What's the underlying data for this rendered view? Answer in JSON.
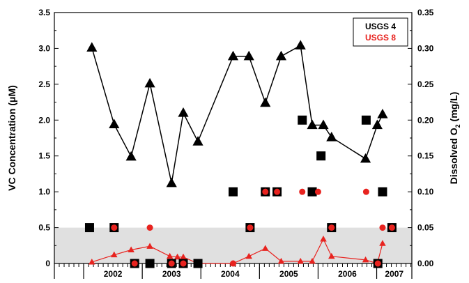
{
  "chart_data": {
    "type": "scatter",
    "title": "",
    "y_left": {
      "label_main": "VC Concentration (",
      "label_mu": "μ",
      "label_tail": "M)",
      "range": [
        0,
        3.5
      ],
      "ticks": [
        "0",
        "0.5",
        "1.0",
        "1.5",
        "2.0",
        "2.5",
        "3.0",
        "3.5"
      ]
    },
    "y_right": {
      "label_main": "Dissolved O",
      "label_sub": "2",
      "label_tail": " (mg/L)",
      "range": [
        0,
        0.35
      ],
      "ticks": [
        "0.00",
        "0.05",
        "0.10",
        "0.15",
        "0.20",
        "0.25",
        "0.30",
        "0.35"
      ]
    },
    "x_axis": {
      "range": [
        2001.5,
        2007.6
      ],
      "year_labels": [
        "2002",
        "2003",
        "2004",
        "2005",
        "2006",
        "2007"
      ]
    },
    "shaded_band": {
      "y_from": 0,
      "y_to": 0.5,
      "color": "#e0e0e0"
    },
    "legend": {
      "position": "top-right",
      "entries": [
        {
          "label": "USGS 4",
          "color": "#000000"
        },
        {
          "label": "USGS 8",
          "color": "#e8231f"
        }
      ]
    },
    "series": [
      {
        "name": "USGS 4",
        "color": "#000000",
        "style": "triangle-line",
        "axis": "right",
        "points": [
          [
            2002.14,
            0.301
          ],
          [
            2002.52,
            0.194
          ],
          [
            2002.81,
            0.149
          ],
          [
            2003.13,
            0.251
          ],
          [
            2003.5,
            0.112
          ],
          [
            2003.7,
            0.21
          ],
          [
            2003.95,
            0.17
          ],
          [
            2004.55,
            0.289
          ],
          [
            2004.82,
            0.289
          ],
          [
            2005.1,
            0.224
          ],
          [
            2005.37,
            0.289
          ],
          [
            2005.7,
            0.304
          ],
          [
            2005.9,
            0.193
          ],
          [
            2006.09,
            0.193
          ],
          [
            2006.23,
            0.176
          ],
          [
            2006.81,
            0.146
          ],
          [
            2007.01,
            0.193
          ],
          [
            2007.1,
            0.208
          ]
        ]
      },
      {
        "name": "USGS 8",
        "color": "#e8231f",
        "style": "triangle-line",
        "axis": "right",
        "points": [
          [
            2002.14,
            0.002
          ],
          [
            2002.52,
            0.012
          ],
          [
            2002.81,
            0.019
          ],
          [
            2003.13,
            0.024
          ],
          [
            2003.47,
            0.01
          ],
          [
            2003.6,
            0.009
          ],
          [
            2003.7,
            0.009
          ],
          [
            2003.95,
            0.0
          ],
          [
            2004.55,
            0.0
          ],
          [
            2004.82,
            0.01
          ],
          [
            2005.1,
            0.021
          ],
          [
            2005.37,
            0.003
          ],
          [
            2005.7,
            0.003
          ],
          [
            2005.9,
            0.003
          ],
          [
            2006.09,
            0.034
          ],
          [
            2006.23,
            0.01
          ],
          [
            2006.81,
            0.005
          ],
          [
            2007.01,
            0.0
          ],
          [
            2007.1,
            0.028
          ]
        ]
      },
      {
        "name": "USGS 4 VC",
        "color": "#000000",
        "style": "square",
        "axis": "left",
        "points": [
          [
            2002.1,
            0.5
          ],
          [
            2002.52,
            0.5
          ],
          [
            2002.87,
            0.0
          ],
          [
            2003.13,
            0.0
          ],
          [
            2003.5,
            0.0
          ],
          [
            2003.7,
            0.0
          ],
          [
            2003.95,
            0.0
          ],
          [
            2004.55,
            1.0
          ],
          [
            2004.84,
            0.5
          ],
          [
            2005.1,
            1.0
          ],
          [
            2005.3,
            1.0
          ],
          [
            2005.73,
            2.0
          ],
          [
            2005.9,
            1.0
          ],
          [
            2006.05,
            1.5
          ],
          [
            2006.23,
            0.5
          ],
          [
            2006.82,
            2.0
          ],
          [
            2007.02,
            0.0
          ],
          [
            2007.1,
            1.0
          ],
          [
            2007.26,
            0.5
          ]
        ]
      },
      {
        "name": "USGS 8 VC",
        "color": "#e8231f",
        "style": "circle",
        "axis": "left",
        "points": [
          [
            2002.52,
            0.5
          ],
          [
            2002.87,
            0.0
          ],
          [
            2003.13,
            0.5
          ],
          [
            2003.5,
            0.0
          ],
          [
            2003.7,
            0.0
          ],
          [
            2004.55,
            0.0
          ],
          [
            2004.84,
            0.5
          ],
          [
            2005.1,
            1.0
          ],
          [
            2005.3,
            1.0
          ],
          [
            2005.73,
            1.0
          ],
          [
            2006.0,
            1.0
          ],
          [
            2006.23,
            0.5
          ],
          [
            2006.82,
            1.0
          ],
          [
            2007.02,
            0.0
          ],
          [
            2007.1,
            0.5
          ],
          [
            2007.26,
            0.5
          ]
        ]
      }
    ]
  }
}
